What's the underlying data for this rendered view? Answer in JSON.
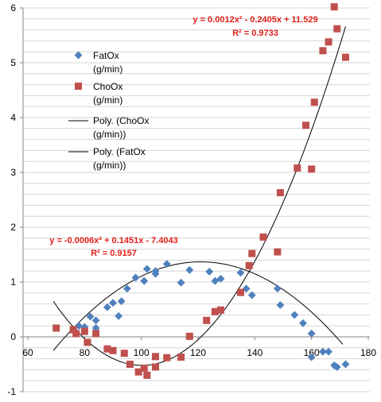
{
  "chart_data": {
    "type": "scatter",
    "xlim": [
      60,
      180
    ],
    "ylim": [
      -1,
      6
    ],
    "x_ticks": [
      "60",
      "80",
      "100",
      "120",
      "140",
      "160",
      "180"
    ],
    "y_ticks": [
      "-1",
      "0",
      "1",
      "2",
      "3",
      "4",
      "5",
      "6"
    ],
    "grid": "horizontal",
    "legend_position": "left-middle",
    "series": [
      {
        "name": "FatOx (g/min)",
        "marker": "diamond",
        "color": "#4f81bd",
        "points": [
          [
            77,
            0.08
          ],
          [
            78,
            0.2
          ],
          [
            80,
            0.18
          ],
          [
            82,
            0.37
          ],
          [
            84,
            0.3
          ],
          [
            84,
            0.16
          ],
          [
            88,
            0.54
          ],
          [
            90,
            0.62
          ],
          [
            92,
            0.38
          ],
          [
            93,
            0.65
          ],
          [
            95,
            0.88
          ],
          [
            98,
            1.08
          ],
          [
            101,
            1.02
          ],
          [
            102,
            1.24
          ],
          [
            105,
            1.2
          ],
          [
            105,
            1.15
          ],
          [
            109,
            1.33
          ],
          [
            114,
            0.99
          ],
          [
            117,
            1.22
          ],
          [
            124,
            1.19
          ],
          [
            126,
            1.02
          ],
          [
            128,
            1.06
          ],
          [
            135,
            1.17
          ],
          [
            137,
            0.88
          ],
          [
            139,
            0.76
          ],
          [
            148,
            0.88
          ],
          [
            149,
            0.58
          ],
          [
            154,
            0.4
          ],
          [
            157,
            0.25
          ],
          [
            160,
            0.06
          ],
          [
            160,
            -0.37
          ],
          [
            164,
            -0.27
          ],
          [
            166,
            -0.27
          ],
          [
            168,
            -0.52
          ],
          [
            169,
            -0.55
          ],
          [
            172,
            -0.5
          ]
        ]
      },
      {
        "name": "ChoOx (g/min)",
        "marker": "square",
        "color": "#c0504d",
        "points": [
          [
            70,
            0.16
          ],
          [
            76,
            0.13
          ],
          [
            77,
            0.06
          ],
          [
            80,
            0.1
          ],
          [
            81,
            -0.1
          ],
          [
            84,
            0.06
          ],
          [
            88,
            -0.22
          ],
          [
            90,
            -0.25
          ],
          [
            94,
            -0.3
          ],
          [
            96,
            -0.5
          ],
          [
            99,
            -0.64
          ],
          [
            101,
            -0.57
          ],
          [
            102,
            -0.7
          ],
          [
            105,
            -0.36
          ],
          [
            105,
            -0.55
          ],
          [
            109,
            -0.38
          ],
          [
            114,
            -0.37
          ],
          [
            117,
            0.01
          ],
          [
            123,
            0.3
          ],
          [
            126,
            0.46
          ],
          [
            128,
            0.49
          ],
          [
            135,
            0.81
          ],
          [
            138,
            1.3
          ],
          [
            139,
            1.52
          ],
          [
            143,
            1.82
          ],
          [
            148,
            1.55
          ],
          [
            149,
            2.63
          ],
          [
            155,
            3.08
          ],
          [
            158,
            3.86
          ],
          [
            160,
            3.06
          ],
          [
            161,
            4.28
          ],
          [
            164,
            5.22
          ],
          [
            166,
            5.38
          ],
          [
            168,
            6.02
          ],
          [
            169,
            5.62
          ],
          [
            172,
            5.1
          ]
        ]
      },
      {
        "name": "Poly. (ChoOx (g/min))",
        "type": "trendline",
        "color": "#000000",
        "coefficients": [
          0.0012,
          -0.2405,
          11.529
        ],
        "x_range": [
          69,
          172
        ]
      },
      {
        "name": "Poly. (FatOx (g/min))",
        "type": "trendline",
        "color": "#000000",
        "coefficients": [
          -0.0006,
          0.1451,
          -7.4043
        ],
        "x_range": [
          69,
          171
        ]
      }
    ],
    "annotations": [
      {
        "equation": "y = 0.0012x² - 0.2405x + 11.529",
        "r2": "R² = 0.9733"
      },
      {
        "equation": "y = -0.0006x² + 0.1451x - 7.4043",
        "r2": "R² = 0.9157"
      }
    ],
    "legend": [
      {
        "line1": "FatOx",
        "line2": "(g/min)",
        "marker": "diamond"
      },
      {
        "line1": "ChoOx",
        "line2": "(g/min)",
        "marker": "square"
      },
      {
        "line1": "Poly. (ChoOx",
        "line2": "(g/min))",
        "marker": "line"
      },
      {
        "line1": "Poly. (FatOx",
        "line2": "(g/min))",
        "marker": "line"
      }
    ]
  }
}
